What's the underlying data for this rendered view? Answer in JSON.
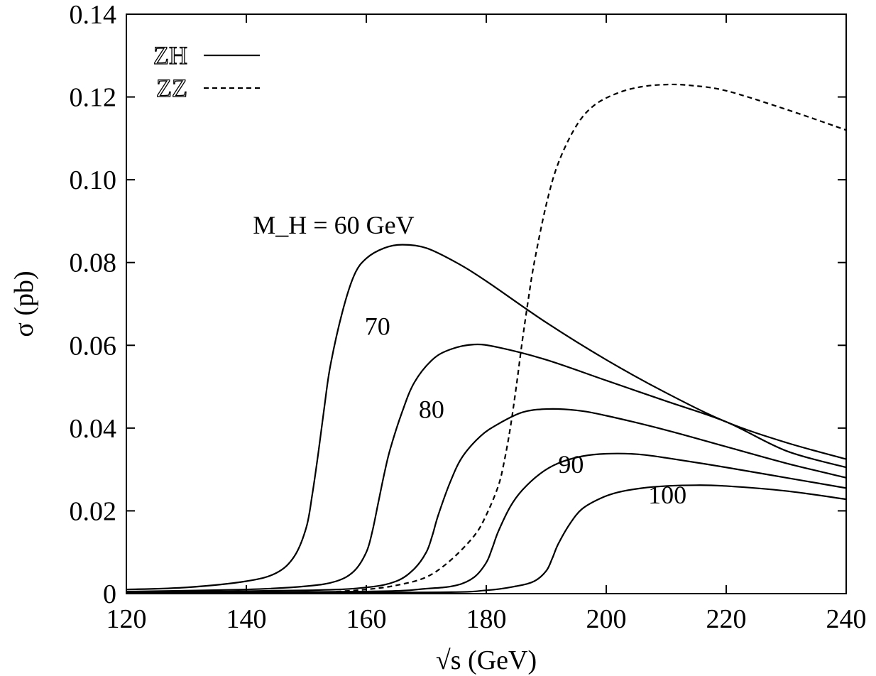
{
  "chart_data": {
    "type": "line",
    "xlabel": "√s (GeV)",
    "ylabel": "σ (pb)",
    "xlim": [
      120,
      240
    ],
    "ylim": [
      0,
      0.14
    ],
    "x_ticks": [
      "120",
      "140",
      "160",
      "180",
      "200",
      "220",
      "240"
    ],
    "y_ticks": [
      "0",
      "0.02",
      "0.04",
      "0.06",
      "0.08",
      "0.10",
      "0.12",
      "0.14"
    ],
    "grid": false,
    "legend_position": "top-left",
    "legend": [
      {
        "label": "ZH",
        "style": "solid"
      },
      {
        "label": "ZZ",
        "style": "dashed"
      }
    ],
    "series": [
      {
        "label": "M_H = 60 GeV",
        "style": "solid",
        "x": [
          120,
          130,
          140,
          145,
          148,
          150,
          151,
          152,
          153,
          154,
          156,
          158,
          160,
          163,
          166,
          170,
          175,
          180,
          190,
          200,
          210,
          220,
          230,
          240
        ],
        "y": [
          0.001,
          0.0015,
          0.003,
          0.005,
          0.009,
          0.016,
          0.024,
          0.034,
          0.045,
          0.055,
          0.068,
          0.077,
          0.081,
          0.0835,
          0.0843,
          0.0835,
          0.08,
          0.0755,
          0.0655,
          0.0565,
          0.0485,
          0.0415,
          0.0365,
          0.0325
        ]
      },
      {
        "label": "70",
        "style": "solid",
        "x": [
          120,
          140,
          150,
          155,
          158,
          160,
          161,
          162,
          163,
          164,
          166,
          168,
          171,
          174,
          178,
          182,
          190,
          200,
          210,
          220,
          230,
          240
        ],
        "y": [
          0.0005,
          0.001,
          0.0018,
          0.003,
          0.0055,
          0.01,
          0.015,
          0.022,
          0.029,
          0.035,
          0.044,
          0.051,
          0.0565,
          0.059,
          0.0602,
          0.0595,
          0.0565,
          0.0515,
          0.0465,
          0.0415,
          0.0345,
          0.0305
        ]
      },
      {
        "label": "80",
        "style": "solid",
        "x": [
          120,
          150,
          160,
          165,
          168,
          170,
          171,
          172,
          174,
          176,
          179,
          182,
          186,
          190,
          195,
          200,
          210,
          220,
          230,
          240
        ],
        "y": [
          0.0003,
          0.0008,
          0.0015,
          0.003,
          0.006,
          0.01,
          0.014,
          0.019,
          0.027,
          0.033,
          0.038,
          0.041,
          0.0438,
          0.0446,
          0.0443,
          0.043,
          0.0395,
          0.0355,
          0.0315,
          0.028
        ]
      },
      {
        "label": "90",
        "style": "solid",
        "x": [
          120,
          160,
          170,
          175,
          178,
          180,
          181,
          182,
          184,
          186,
          189,
          192,
          196,
          200,
          205,
          210,
          220,
          230,
          240
        ],
        "y": [
          0.0002,
          0.0005,
          0.0012,
          0.002,
          0.004,
          0.0075,
          0.011,
          0.015,
          0.021,
          0.025,
          0.029,
          0.0315,
          0.0332,
          0.0338,
          0.0337,
          0.0328,
          0.0305,
          0.028,
          0.0255
        ]
      },
      {
        "label": "100",
        "style": "solid",
        "x": [
          120,
          170,
          180,
          185,
          188,
          190,
          191,
          192,
          194,
          196,
          199,
          202,
          206,
          210,
          215,
          220,
          230,
          240
        ],
        "y": [
          0.0001,
          0.0003,
          0.0008,
          0.0018,
          0.003,
          0.0055,
          0.0085,
          0.012,
          0.017,
          0.0205,
          0.023,
          0.0245,
          0.0255,
          0.026,
          0.0262,
          0.026,
          0.0248,
          0.0228
        ]
      },
      {
        "label": "ZZ",
        "style": "dashed",
        "x": [
          155,
          160,
          165,
          170,
          174,
          178,
          180,
          182,
          183,
          184,
          185,
          186,
          187,
          188,
          190,
          192,
          195,
          198,
          202,
          206,
          210,
          214,
          220,
          230,
          240
        ],
        "y": [
          0.0005,
          0.001,
          0.002,
          0.004,
          0.008,
          0.014,
          0.019,
          0.026,
          0.032,
          0.04,
          0.05,
          0.061,
          0.071,
          0.08,
          0.094,
          0.104,
          0.113,
          0.118,
          0.121,
          0.1225,
          0.123,
          0.1228,
          0.1215,
          0.117,
          0.112
        ]
      }
    ]
  }
}
